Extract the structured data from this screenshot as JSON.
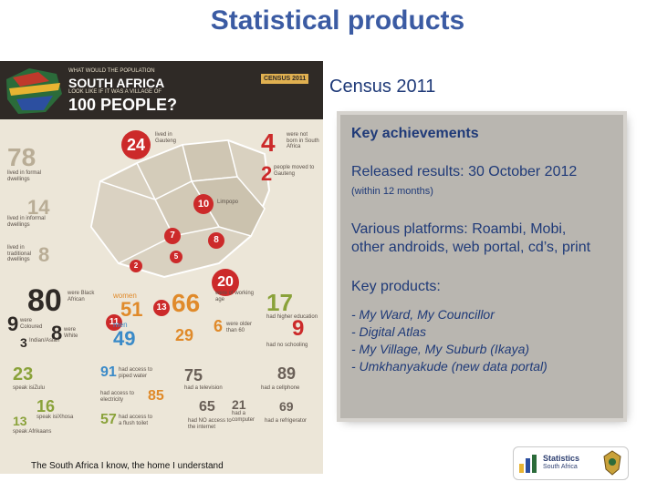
{
  "slide": {
    "title": "Statistical products",
    "footer": "The South Africa I know, the home I understand"
  },
  "infographic": {
    "question_line1": "WHAT WOULD THE POPULATION",
    "question_line2": "SOUTH AFRICA",
    "question_line3": "LOOK LIKE IF IT WAS A VILLAGE OF",
    "question_line4": "100 PEOPLE?",
    "badge": "CENSUS 2011",
    "stats": {
      "formal": "78",
      "formal_label": "lived in formal dwellings",
      "informal": "14",
      "informal_label": "lived in informal dwellings",
      "traditional": "8",
      "traditional_label": "lived in traditional dwellings",
      "gauteng": "24",
      "gauteng_label": "lived in Gauteng",
      "limpopo": "10",
      "limpopo_label": "Limpopo",
      "not_born": "4",
      "not_born_label": "were not born in South Africa",
      "moved": "2",
      "moved_label": "people moved to Gauteng",
      "northwest": "7",
      "mpumalanga": "8",
      "kzn": "20",
      "freestate": "5",
      "ncape": "2",
      "ecape": "13",
      "wcape": "11",
      "african": "80",
      "african_label": "were Black African",
      "coloured": "9",
      "coloured_label": "were Coloured",
      "white": "8",
      "white_label": "were White",
      "indian": "3",
      "indian_label": "Indian/Asian",
      "women": "51",
      "women_word": "women",
      "men": "49",
      "men_word": "men",
      "working_age": "66",
      "working_age_label": "were of working age",
      "young": "29",
      "older": "6",
      "older_label": "were older than 60",
      "higher_ed": "17",
      "higher_ed_label": "had higher education",
      "no_school": "9",
      "no_school_label": "had no schooling",
      "zulu": "23",
      "zulu_label": "speak isiZulu",
      "xhosa": "16",
      "xhosa_label": "speak isiXhosa",
      "afrikaans": "13",
      "afrikaans_label": "speak Afrikaans",
      "water": "91",
      "water_label": "had access to piped water",
      "electricity": "85",
      "electricity_label": "had access to electricity",
      "toilet": "57",
      "toilet_label": "had access to a flush toilet",
      "tv": "75",
      "tv_label": "had a television",
      "cellphone": "89",
      "cellphone_label": "had a cellphone",
      "no_internet": "65",
      "no_internet_label": "had NO access to the internet",
      "computer": "21",
      "computer_label": "had a computer",
      "fridge": "69",
      "fridge_label": "had a refrigerator"
    }
  },
  "panel": {
    "census_title": "Census 2011",
    "heading": "Key achievements",
    "released": "Released results: 30 October 2012",
    "within": "(within 12 months)",
    "platforms_line1": "Various platforms:  Roambi, Mobi,",
    "platforms_line2": "other androids, web portal, cd’s, print",
    "products_heading": "Key products:",
    "products": [
      "- My Ward, My Councillor",
      "- Digital Atlas",
      "- My Village, My Suburb (Ikaya)",
      "- Umkhanyakude (new data portal)"
    ]
  },
  "logo": {
    "line1": "Statistics",
    "line2": "South Africa"
  },
  "colors": {
    "title": "#3b5ba3",
    "panel_text": "#1f3a78",
    "panel_bg": "#b9b6b0",
    "red": "#cc2a2a",
    "olive": "#8aa23a",
    "orange": "#e08a2a",
    "blue": "#3a8ac8"
  }
}
